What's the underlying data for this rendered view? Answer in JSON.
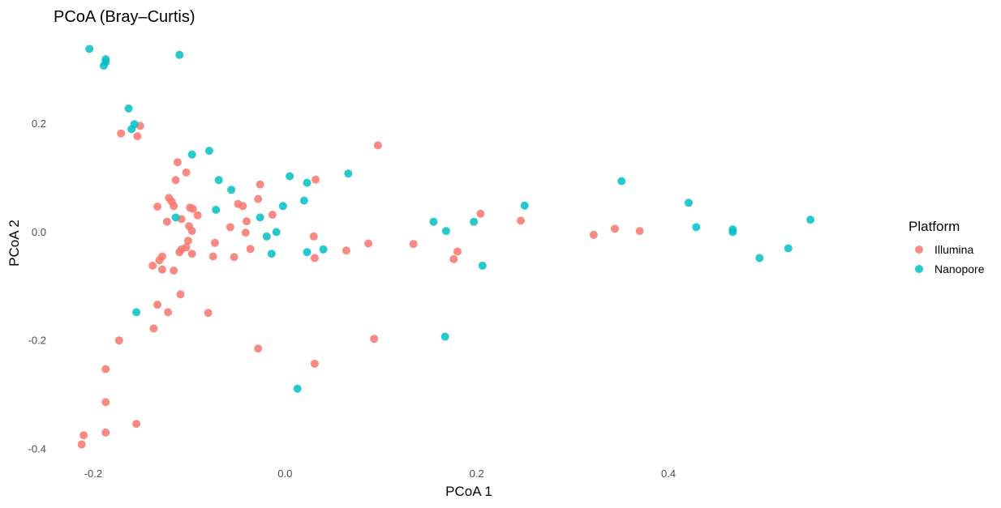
{
  "chart_data": {
    "type": "scatter",
    "title": "PCoA (Bray–Curtis)",
    "xlabel": "PCoA 1",
    "ylabel": "PCoA 2",
    "xlim": [
      -0.238,
      0.625
    ],
    "ylim": [
      -0.425,
      0.36
    ],
    "xticks": [
      -0.2,
      0.0,
      0.2,
      0.4
    ],
    "xtick_labels": [
      "-0.2",
      "0.0",
      "0.2",
      "0.4"
    ],
    "yticks": [
      -0.4,
      -0.2,
      0.0,
      0.2
    ],
    "ytick_labels": [
      "-0.4",
      "-0.2",
      "0.0",
      "0.2"
    ],
    "grid": false,
    "legend": {
      "title": "Platform",
      "position": "right"
    },
    "series": [
      {
        "name": "Illumina",
        "color": "#F8766D",
        "points": [
          [
            -0.171,
            0.181
          ],
          [
            -0.154,
            0.176
          ],
          [
            -0.151,
            0.195
          ],
          [
            -0.112,
            0.128
          ],
          [
            -0.103,
            0.109
          ],
          [
            -0.114,
            0.095
          ],
          [
            -0.121,
            0.062
          ],
          [
            -0.133,
            0.046
          ],
          [
            -0.118,
            0.055
          ],
          [
            -0.116,
            0.047
          ],
          [
            -0.099,
            0.044
          ],
          [
            -0.096,
            0.042
          ],
          [
            -0.091,
            0.03
          ],
          [
            -0.108,
            0.023
          ],
          [
            -0.123,
            0.018
          ],
          [
            -0.1,
            0.01
          ],
          [
            -0.097,
            0.001
          ],
          [
            -0.101,
            -0.017
          ],
          [
            -0.103,
            -0.029
          ],
          [
            -0.108,
            -0.033
          ],
          [
            -0.11,
            -0.038
          ],
          [
            -0.097,
            -0.041
          ],
          [
            -0.073,
            -0.021
          ],
          [
            -0.075,
            -0.046
          ],
          [
            -0.128,
            -0.046
          ],
          [
            -0.131,
            -0.053
          ],
          [
            -0.138,
            -0.063
          ],
          [
            -0.128,
            -0.07
          ],
          [
            -0.116,
            -0.072
          ],
          [
            -0.109,
            -0.116
          ],
          [
            -0.133,
            -0.135
          ],
          [
            -0.122,
            -0.149
          ],
          [
            -0.08,
            -0.15
          ],
          [
            -0.137,
            -0.179
          ],
          [
            -0.173,
            -0.201
          ],
          [
            -0.187,
            -0.254
          ],
          [
            -0.187,
            -0.315
          ],
          [
            -0.155,
            -0.355
          ],
          [
            -0.187,
            -0.371
          ],
          [
            -0.21,
            -0.376
          ],
          [
            -0.212,
            -0.393
          ],
          [
            0.097,
            0.159
          ],
          [
            0.032,
            0.096
          ],
          [
            -0.026,
            0.087
          ],
          [
            -0.028,
            0.06
          ],
          [
            -0.049,
            0.051
          ],
          [
            -0.044,
            0.047
          ],
          [
            -0.013,
            0.031
          ],
          [
            -0.04,
            0.019
          ],
          [
            -0.057,
            0.008
          ],
          [
            -0.041,
            -0.002
          ],
          [
            -0.036,
            -0.032
          ],
          [
            -0.053,
            -0.047
          ],
          [
            0.03,
            -0.009
          ],
          [
            0.031,
            -0.049
          ],
          [
            0.064,
            -0.035
          ],
          [
            0.087,
            -0.022
          ],
          [
            0.134,
            -0.023
          ],
          [
            0.18,
            -0.037
          ],
          [
            0.176,
            -0.051
          ],
          [
            0.204,
            0.033
          ],
          [
            0.246,
            0.02
          ],
          [
            0.322,
            -0.006
          ],
          [
            0.344,
            0.005
          ],
          [
            0.37,
            0.001
          ],
          [
            -0.028,
            -0.216
          ],
          [
            0.031,
            -0.244
          ],
          [
            0.093,
            -0.198
          ]
        ]
      },
      {
        "name": "Nanopore",
        "color": "#00BFC4",
        "points": [
          [
            -0.204,
            0.337
          ],
          [
            -0.187,
            0.318
          ],
          [
            -0.187,
            0.313
          ],
          [
            -0.189,
            0.306
          ],
          [
            -0.11,
            0.326
          ],
          [
            -0.163,
            0.227
          ],
          [
            -0.157,
            0.198
          ],
          [
            -0.16,
            0.189
          ],
          [
            -0.097,
            0.142
          ],
          [
            -0.079,
            0.149
          ],
          [
            -0.069,
            0.095
          ],
          [
            -0.056,
            0.077
          ],
          [
            -0.072,
            0.04
          ],
          [
            -0.114,
            0.026
          ],
          [
            0.005,
            0.102
          ],
          [
            0.023,
            0.09
          ],
          [
            0.066,
            0.107
          ],
          [
            0.02,
            0.057
          ],
          [
            -0.002,
            0.047
          ],
          [
            -0.026,
            0.026
          ],
          [
            -0.019,
            -0.009
          ],
          [
            -0.009,
            -0.001
          ],
          [
            -0.014,
            -0.041
          ],
          [
            0.023,
            -0.038
          ],
          [
            0.04,
            -0.033
          ],
          [
            0.155,
            0.018
          ],
          [
            0.168,
            0.001
          ],
          [
            0.197,
            0.018
          ],
          [
            0.25,
            0.048
          ],
          [
            0.206,
            -0.063
          ],
          [
            0.351,
            0.093
          ],
          [
            0.421,
            0.053
          ],
          [
            0.429,
            0.008
          ],
          [
            0.467,
            0.004
          ],
          [
            0.467,
            -0.001
          ],
          [
            0.495,
            -0.049
          ],
          [
            0.525,
            -0.031
          ],
          [
            0.548,
            0.022
          ],
          [
            -0.155,
            -0.149
          ],
          [
            0.167,
            -0.194
          ],
          [
            0.013,
            -0.29
          ]
        ]
      }
    ]
  }
}
